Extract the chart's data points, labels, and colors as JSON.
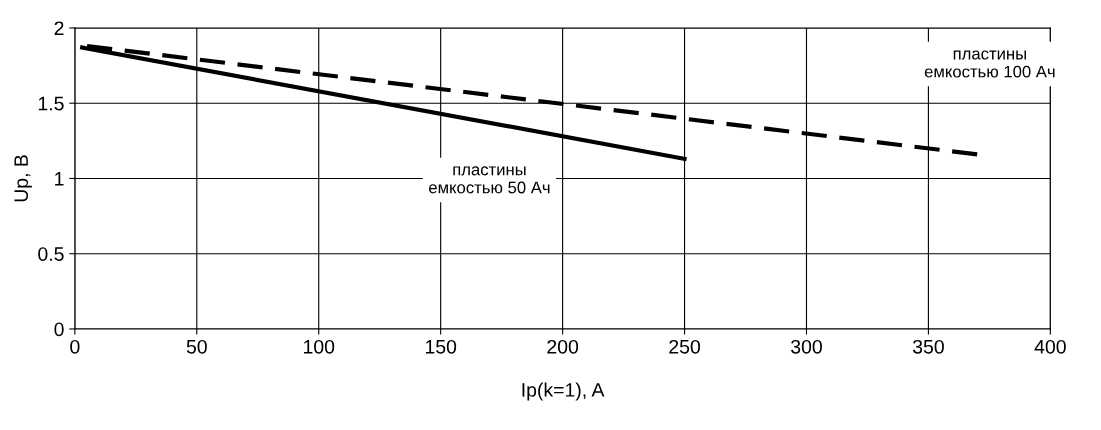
{
  "chart_data": {
    "type": "line",
    "xlabel": "Ip(k=1), A",
    "ylabel": "Up, В",
    "xlim": [
      0,
      400
    ],
    "xticks": [
      0,
      50,
      100,
      150,
      200,
      250,
      300,
      350,
      400
    ],
    "ylim": [
      0,
      2
    ],
    "yticks": [
      0,
      {
        "value": 0.5,
        "label": "0.5"
      },
      1,
      {
        "value": 1.5,
        "label": "1.5"
      },
      2
    ],
    "grid": true,
    "legend": false,
    "marker": "none",
    "series": [
      {
        "color": "#000000",
        "line_style": "solid",
        "x": [
          3,
          250
        ],
        "values": [
          1.87,
          1.13
        ]
      },
      {
        "color": "#000000",
        "line_style": "dashed",
        "x": [
          5,
          370
        ],
        "values": [
          1.88,
          1.16
        ]
      }
    ],
    "annotations": [
      "пластины\nемкостью 50 Ач",
      "пластины\nемкостью 100 Ач"
    ]
  }
}
